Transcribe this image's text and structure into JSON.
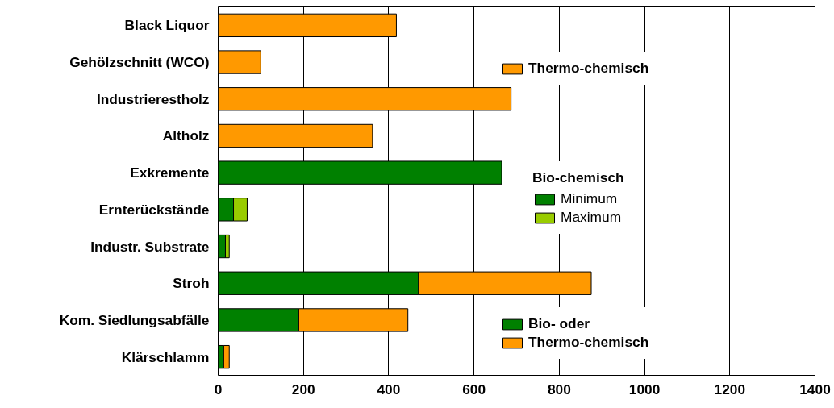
{
  "chart_data": {
    "type": "bar",
    "orientation": "horizontal",
    "stacked": true,
    "categories": [
      "Black Liquor",
      "Gehölzschnitt (WCO)",
      "Industrierestholz",
      "Altholz",
      "Exkremente",
      "Ernterückstände",
      "Industr. Substrate",
      "Stroh",
      "Kom. Siedlungsabfälle",
      "Klärschlamm"
    ],
    "series": [
      {
        "name": "Thermo-chemisch",
        "color": "#ff9900",
        "values": [
          418,
          100,
          687,
          362,
          null,
          null,
          null,
          null,
          null,
          null
        ]
      },
      {
        "name": "Minimum",
        "color": "#008000",
        "values": [
          null,
          null,
          null,
          null,
          665,
          36,
          17,
          null,
          null,
          null
        ]
      },
      {
        "name": "Maximum",
        "color": "#99cc00",
        "values": [
          null,
          null,
          null,
          null,
          null,
          32,
          9,
          null,
          null,
          null
        ]
      },
      {
        "name": "Bio- oder",
        "color": "#008000",
        "values": [
          null,
          null,
          null,
          null,
          null,
          null,
          null,
          470,
          189,
          13
        ]
      },
      {
        "name": "Thermo-chemisch",
        "color": "#ff9900",
        "values": [
          null,
          null,
          null,
          null,
          null,
          null,
          null,
          405,
          256,
          13
        ]
      }
    ],
    "legend_title": "Bio-chemisch",
    "legend": "right",
    "xlim": [
      0,
      1400
    ],
    "xticks": [
      0,
      200,
      400,
      600,
      800,
      1000,
      1200,
      1400
    ],
    "grid": "x"
  }
}
